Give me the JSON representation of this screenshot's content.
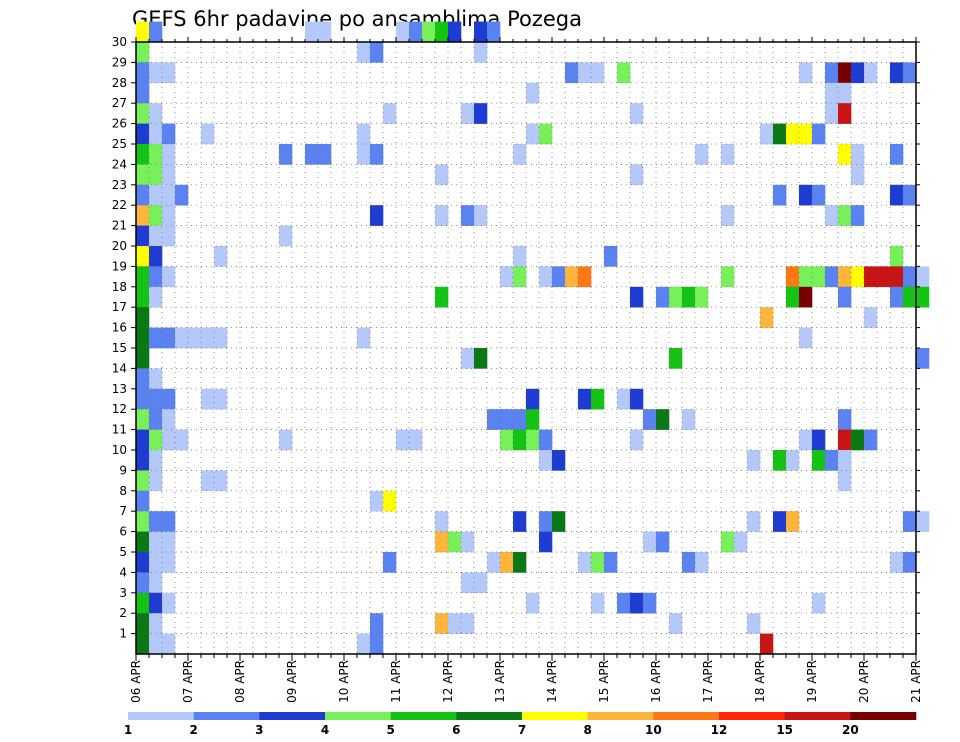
{
  "chart_data": {
    "type": "heatmap",
    "title": "GEFS 6hr padavine po ansamblima Pozega",
    "xlabel": "",
    "ylabel": "",
    "x_tick_labels": [
      "06 APR",
      "07 APR",
      "08 APR",
      "09 APR",
      "10 APR",
      "11 APR",
      "12 APR",
      "13 APR",
      "14 APR",
      "15 APR",
      "16 APR",
      "17 APR",
      "18 APR",
      "19 APR",
      "20 APR",
      "21 APR"
    ],
    "y_tick_labels": [
      "1",
      "2",
      "3",
      "4",
      "5",
      "6",
      "7",
      "8",
      "9",
      "10",
      "11",
      "12",
      "13",
      "14",
      "15",
      "16",
      "17",
      "18",
      "19",
      "20",
      "21",
      "22",
      "23",
      "24",
      "25",
      "26",
      "27",
      "28",
      "29",
      "30"
    ],
    "x_steps_per_day": 4,
    "x_range": [
      "06 APR 00Z",
      "21 APR 00Z"
    ],
    "y_range": [
      0,
      30
    ],
    "grid": true,
    "colorbar": {
      "labels": [
        "1",
        "2",
        "3",
        "4",
        "5",
        "6",
        "7",
        "8",
        "10",
        "12",
        "15",
        "20"
      ],
      "colors": [
        "#b4c8fa",
        "#5a82f0",
        "#1e3cd2",
        "#78f05a",
        "#14c314",
        "#0a7814",
        "#ffff00",
        "#ffb43c",
        "#ff7814",
        "#ff2800",
        "#c81414",
        "#780000"
      ]
    },
    "cells": [
      [
        0,
        30,
        7
      ],
      [
        1,
        30,
        2
      ],
      [
        13,
        30,
        1
      ],
      [
        14,
        30,
        1
      ],
      [
        20,
        30,
        1
      ],
      [
        21,
        30,
        2
      ],
      [
        22,
        30,
        4
      ],
      [
        23,
        30,
        5
      ],
      [
        24,
        30,
        3
      ],
      [
        26,
        30,
        3
      ],
      [
        27,
        30,
        2
      ],
      [
        0,
        29,
        4
      ],
      [
        17,
        29,
        1
      ],
      [
        18,
        29,
        2
      ],
      [
        26,
        29,
        1
      ],
      [
        0,
        28,
        2
      ],
      [
        1,
        28,
        1
      ],
      [
        2,
        28,
        1
      ],
      [
        33,
        28,
        2
      ],
      [
        34,
        28,
        1
      ],
      [
        35,
        28,
        1
      ],
      [
        37,
        28,
        4
      ],
      [
        51,
        28,
        1
      ],
      [
        53,
        28,
        2
      ],
      [
        54,
        28,
        12
      ],
      [
        55,
        28,
        3
      ],
      [
        56,
        28,
        1
      ],
      [
        58,
        28,
        3
      ],
      [
        59,
        28,
        2
      ],
      [
        0,
        27,
        2
      ],
      [
        30,
        27,
        1
      ],
      [
        53,
        27,
        1
      ],
      [
        54,
        27,
        1
      ],
      [
        0,
        26,
        4
      ],
      [
        1,
        26,
        1
      ],
      [
        19,
        26,
        1
      ],
      [
        25,
        26,
        1
      ],
      [
        26,
        26,
        3
      ],
      [
        38,
        26,
        1
      ],
      [
        53,
        26,
        1
      ],
      [
        54,
        26,
        11
      ],
      [
        0,
        25,
        3
      ],
      [
        1,
        25,
        1
      ],
      [
        2,
        25,
        2
      ],
      [
        5,
        25,
        1
      ],
      [
        17,
        25,
        1
      ],
      [
        30,
        25,
        1
      ],
      [
        31,
        25,
        4
      ],
      [
        48,
        25,
        1
      ],
      [
        49,
        25,
        6
      ],
      [
        50,
        25,
        7
      ],
      [
        51,
        25,
        7
      ],
      [
        52,
        25,
        2
      ],
      [
        0,
        24,
        5
      ],
      [
        1,
        24,
        4
      ],
      [
        2,
        24,
        1
      ],
      [
        11,
        24,
        2
      ],
      [
        13,
        24,
        2
      ],
      [
        14,
        24,
        2
      ],
      [
        17,
        24,
        1
      ],
      [
        18,
        24,
        2
      ],
      [
        29,
        24,
        1
      ],
      [
        43,
        24,
        1
      ],
      [
        45,
        24,
        1
      ],
      [
        54,
        24,
        7
      ],
      [
        55,
        24,
        1
      ],
      [
        58,
        24,
        2
      ],
      [
        0,
        23,
        4
      ],
      [
        1,
        23,
        4
      ],
      [
        2,
        23,
        1
      ],
      [
        23,
        23,
        1
      ],
      [
        38,
        23,
        1
      ],
      [
        55,
        23,
        1
      ],
      [
        0,
        22,
        2
      ],
      [
        1,
        22,
        1
      ],
      [
        2,
        22,
        1
      ],
      [
        3,
        22,
        2
      ],
      [
        49,
        22,
        2
      ],
      [
        51,
        22,
        3
      ],
      [
        52,
        22,
        2
      ],
      [
        58,
        22,
        3
      ],
      [
        59,
        22,
        2
      ],
      [
        0,
        21,
        8
      ],
      [
        1,
        21,
        4
      ],
      [
        2,
        21,
        1
      ],
      [
        18,
        21,
        3
      ],
      [
        23,
        21,
        1
      ],
      [
        25,
        21,
        2
      ],
      [
        26,
        21,
        1
      ],
      [
        45,
        21,
        1
      ],
      [
        53,
        21,
        1
      ],
      [
        54,
        21,
        4
      ],
      [
        55,
        21,
        2
      ],
      [
        0,
        20,
        3
      ],
      [
        1,
        20,
        1
      ],
      [
        2,
        20,
        1
      ],
      [
        11,
        20,
        1
      ],
      [
        0,
        19,
        7
      ],
      [
        1,
        19,
        3
      ],
      [
        6,
        19,
        1
      ],
      [
        29,
        19,
        1
      ],
      [
        36,
        19,
        2
      ],
      [
        58,
        19,
        4
      ],
      [
        0,
        18,
        5
      ],
      [
        1,
        18,
        2
      ],
      [
        2,
        18,
        1
      ],
      [
        28,
        18,
        1
      ],
      [
        29,
        18,
        4
      ],
      [
        31,
        18,
        1
      ],
      [
        32,
        18,
        2
      ],
      [
        33,
        18,
        8
      ],
      [
        34,
        18,
        9
      ],
      [
        45,
        18,
        4
      ],
      [
        50,
        18,
        9
      ],
      [
        51,
        18,
        4
      ],
      [
        52,
        18,
        4
      ],
      [
        53,
        18,
        2
      ],
      [
        54,
        18,
        8
      ],
      [
        55,
        18,
        7
      ],
      [
        56,
        18,
        11
      ],
      [
        57,
        18,
        11
      ],
      [
        58,
        18,
        11
      ],
      [
        59,
        18,
        2
      ],
      [
        60,
        18,
        1
      ],
      [
        0,
        17,
        5
      ],
      [
        1,
        17,
        1
      ],
      [
        23,
        17,
        5
      ],
      [
        38,
        17,
        3
      ],
      [
        40,
        17,
        2
      ],
      [
        41,
        17,
        4
      ],
      [
        42,
        17,
        5
      ],
      [
        43,
        17,
        4
      ],
      [
        50,
        17,
        5
      ],
      [
        51,
        17,
        12
      ],
      [
        54,
        17,
        2
      ],
      [
        58,
        17,
        2
      ],
      [
        59,
        17,
        5
      ],
      [
        60,
        17,
        5
      ],
      [
        0,
        16,
        6
      ],
      [
        48,
        16,
        8
      ],
      [
        56,
        16,
        1
      ],
      [
        0,
        15,
        6
      ],
      [
        1,
        15,
        2
      ],
      [
        2,
        15,
        2
      ],
      [
        3,
        15,
        1
      ],
      [
        4,
        15,
        1
      ],
      [
        5,
        15,
        1
      ],
      [
        6,
        15,
        1
      ],
      [
        17,
        15,
        1
      ],
      [
        51,
        15,
        1
      ],
      [
        0,
        14,
        6
      ],
      [
        25,
        14,
        1
      ],
      [
        26,
        14,
        6
      ],
      [
        41,
        14,
        5
      ],
      [
        60,
        14,
        2
      ],
      [
        0,
        13,
        2
      ],
      [
        1,
        13,
        1
      ],
      [
        0,
        12,
        2
      ],
      [
        1,
        12,
        2
      ],
      [
        2,
        12,
        2
      ],
      [
        5,
        12,
        1
      ],
      [
        6,
        12,
        1
      ],
      [
        30,
        12,
        3
      ],
      [
        34,
        12,
        3
      ],
      [
        35,
        12,
        5
      ],
      [
        37,
        12,
        1
      ],
      [
        38,
        12,
        3
      ],
      [
        0,
        11,
        4
      ],
      [
        1,
        11,
        2
      ],
      [
        2,
        11,
        1
      ],
      [
        27,
        11,
        2
      ],
      [
        28,
        11,
        2
      ],
      [
        29,
        11,
        2
      ],
      [
        30,
        11,
        5
      ],
      [
        39,
        11,
        2
      ],
      [
        40,
        11,
        6
      ],
      [
        42,
        11,
        1
      ],
      [
        54,
        11,
        2
      ],
      [
        0,
        10,
        3
      ],
      [
        1,
        10,
        4
      ],
      [
        2,
        10,
        1
      ],
      [
        3,
        10,
        1
      ],
      [
        11,
        10,
        1
      ],
      [
        20,
        10,
        1
      ],
      [
        21,
        10,
        1
      ],
      [
        28,
        10,
        4
      ],
      [
        29,
        10,
        5
      ],
      [
        30,
        10,
        4
      ],
      [
        31,
        10,
        2
      ],
      [
        38,
        10,
        1
      ],
      [
        51,
        10,
        1
      ],
      [
        52,
        10,
        3
      ],
      [
        54,
        10,
        11
      ],
      [
        55,
        10,
        6
      ],
      [
        56,
        10,
        2
      ],
      [
        0,
        9,
        3
      ],
      [
        1,
        9,
        1
      ],
      [
        31,
        9,
        1
      ],
      [
        32,
        9,
        3
      ],
      [
        47,
        9,
        1
      ],
      [
        49,
        9,
        5
      ],
      [
        50,
        9,
        1
      ],
      [
        52,
        9,
        5
      ],
      [
        53,
        9,
        2
      ],
      [
        54,
        9,
        1
      ],
      [
        0,
        8,
        4
      ],
      [
        1,
        8,
        1
      ],
      [
        5,
        8,
        1
      ],
      [
        6,
        8,
        1
      ],
      [
        54,
        8,
        1
      ],
      [
        0,
        7,
        2
      ],
      [
        18,
        7,
        1
      ],
      [
        19,
        7,
        7
      ],
      [
        0,
        6,
        4
      ],
      [
        1,
        6,
        2
      ],
      [
        2,
        6,
        2
      ],
      [
        23,
        6,
        1
      ],
      [
        29,
        6,
        3
      ],
      [
        31,
        6,
        2
      ],
      [
        32,
        6,
        6
      ],
      [
        47,
        6,
        1
      ],
      [
        49,
        6,
        3
      ],
      [
        50,
        6,
        8
      ],
      [
        59,
        6,
        2
      ],
      [
        60,
        6,
        1
      ],
      [
        0,
        5,
        6
      ],
      [
        1,
        5,
        1
      ],
      [
        2,
        5,
        1
      ],
      [
        23,
        5,
        8
      ],
      [
        24,
        5,
        4
      ],
      [
        25,
        5,
        1
      ],
      [
        31,
        5,
        3
      ],
      [
        39,
        5,
        1
      ],
      [
        40,
        5,
        2
      ],
      [
        45,
        5,
        4
      ],
      [
        46,
        5,
        1
      ],
      [
        0,
        4,
        3
      ],
      [
        1,
        4,
        1
      ],
      [
        2,
        4,
        1
      ],
      [
        19,
        4,
        2
      ],
      [
        27,
        4,
        1
      ],
      [
        28,
        4,
        8
      ],
      [
        29,
        4,
        6
      ],
      [
        34,
        4,
        1
      ],
      [
        35,
        4,
        4
      ],
      [
        36,
        4,
        2
      ],
      [
        42,
        4,
        2
      ],
      [
        43,
        4,
        1
      ],
      [
        58,
        4,
        1
      ],
      [
        59,
        4,
        2
      ],
      [
        0,
        3,
        2
      ],
      [
        1,
        3,
        1
      ],
      [
        25,
        3,
        1
      ],
      [
        26,
        3,
        1
      ],
      [
        0,
        2,
        5
      ],
      [
        1,
        2,
        3
      ],
      [
        2,
        2,
        1
      ],
      [
        30,
        2,
        1
      ],
      [
        35,
        2,
        1
      ],
      [
        37,
        2,
        2
      ],
      [
        38,
        2,
        3
      ],
      [
        39,
        2,
        2
      ],
      [
        52,
        2,
        1
      ],
      [
        0,
        1,
        6
      ],
      [
        1,
        1,
        1
      ],
      [
        18,
        1,
        2
      ],
      [
        23,
        1,
        8
      ],
      [
        24,
        1,
        1
      ],
      [
        25,
        1,
        1
      ],
      [
        41,
        1,
        1
      ],
      [
        47,
        1,
        1
      ],
      [
        0,
        0,
        6
      ],
      [
        1,
        0,
        1
      ],
      [
        2,
        0,
        1
      ],
      [
        17,
        0,
        1
      ],
      [
        18,
        0,
        2
      ],
      [
        48,
        0,
        11
      ]
    ]
  }
}
